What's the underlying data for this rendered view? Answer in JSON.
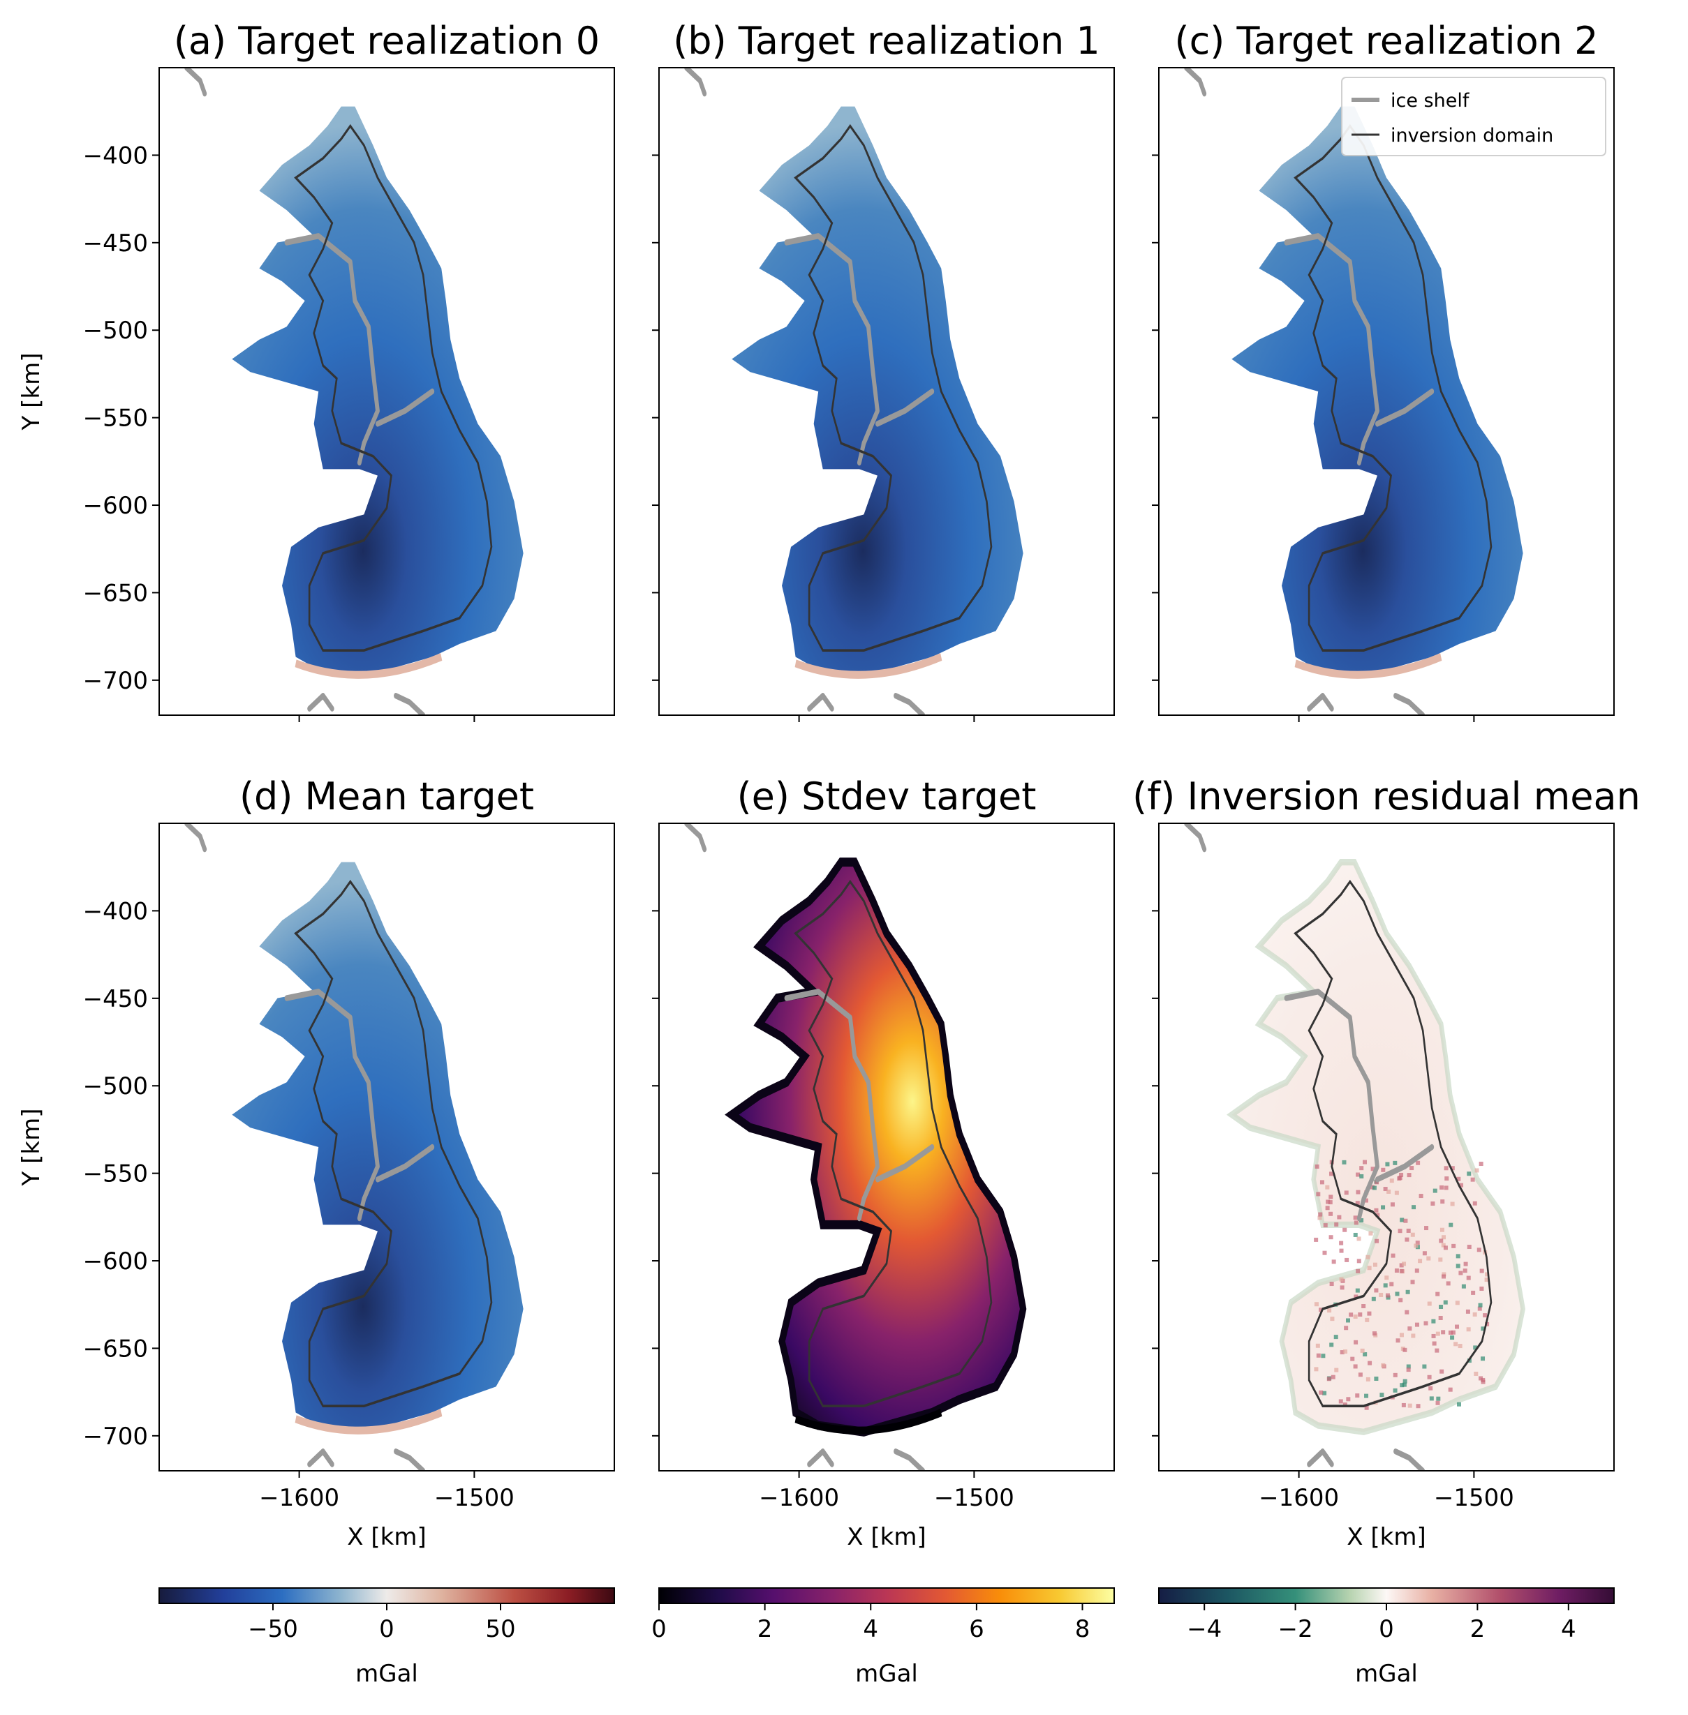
{
  "chart_data": [
    {
      "type": "heatmap",
      "title": "(a) Target realization 0",
      "ylabel": "Y [km]",
      "xlabel": "",
      "xlim": [
        -1680,
        -1420
      ],
      "ylim": [
        -720,
        -350
      ],
      "colormap": "balance (blue-white-red)",
      "unit": "mGal",
      "clim": [
        -100,
        100
      ]
    },
    {
      "type": "heatmap",
      "title": "(b) Target realization 1",
      "ylabel": "",
      "xlabel": "",
      "xlim": [
        -1680,
        -1420
      ],
      "ylim": [
        -720,
        -350
      ],
      "colormap": "balance (blue-white-red)",
      "unit": "mGal",
      "clim": [
        -100,
        100
      ]
    },
    {
      "type": "heatmap",
      "title": "(c) Target realization 2",
      "ylabel": "",
      "xlabel": "",
      "xlim": [
        -1680,
        -1420
      ],
      "ylim": [
        -720,
        -350
      ],
      "colormap": "balance (blue-white-red)",
      "unit": "mGal",
      "clim": [
        -100,
        100
      ],
      "legend": {
        "placement": "top-right",
        "entries": [
          "ice shelf",
          "inversion domain"
        ]
      }
    },
    {
      "type": "heatmap",
      "title": "(d) Mean target",
      "ylabel": "Y [km]",
      "xlabel": "X [km]",
      "xlim": [
        -1680,
        -1420
      ],
      "ylim": [
        -720,
        -350
      ],
      "colormap": "balance (blue-white-red)",
      "unit": "mGal",
      "clim": [
        -100,
        100
      ]
    },
    {
      "type": "heatmap",
      "title": "(e) Stdev target",
      "ylabel": "",
      "xlabel": "X [km]",
      "xlim": [
        -1680,
        -1420
      ],
      "ylim": [
        -720,
        -350
      ],
      "colormap": "inferno",
      "unit": "mGal",
      "clim": [
        0,
        8.6
      ]
    },
    {
      "type": "heatmap",
      "title": "(f) Inversion residual mean",
      "ylabel": "",
      "xlabel": "X [km]",
      "xlim": [
        -1680,
        -1420
      ],
      "ylim": [
        -720,
        -350
      ],
      "colormap": "curl (teal-white-purple)",
      "unit": "mGal",
      "clim": [
        -5,
        5
      ]
    }
  ],
  "axes": {
    "yticks": [
      -400,
      -450,
      -500,
      -550,
      -600,
      -650,
      -700
    ],
    "ytick_labels": [
      "−400",
      "−450",
      "−500",
      "−550",
      "−600",
      "−650",
      "−700"
    ],
    "xticks": [
      -1600,
      -1500
    ],
    "xtick_labels": [
      "−1600",
      "−1500"
    ]
  },
  "colorbars": [
    {
      "ticks": [
        -50,
        0,
        50
      ],
      "labels": [
        "−50",
        "0",
        "50"
      ],
      "range": [
        -100,
        100
      ],
      "label": "mGal"
    },
    {
      "ticks": [
        0,
        2,
        4,
        6,
        8
      ],
      "labels": [
        "0",
        "2",
        "4",
        "6",
        "8"
      ],
      "range": [
        0,
        8.6
      ],
      "label": "mGal"
    },
    {
      "ticks": [
        -4,
        -2,
        0,
        2,
        4
      ],
      "labels": [
        "−4",
        "−2",
        "0",
        "2",
        "4"
      ],
      "range": [
        -5,
        5
      ],
      "label": "mGal"
    }
  ],
  "legend": {
    "ice_shelf": "ice shelf",
    "inversion_domain": "inversion domain"
  },
  "colors": {
    "ice_shelf_line": "#999999",
    "inversion_line": "#333333"
  }
}
